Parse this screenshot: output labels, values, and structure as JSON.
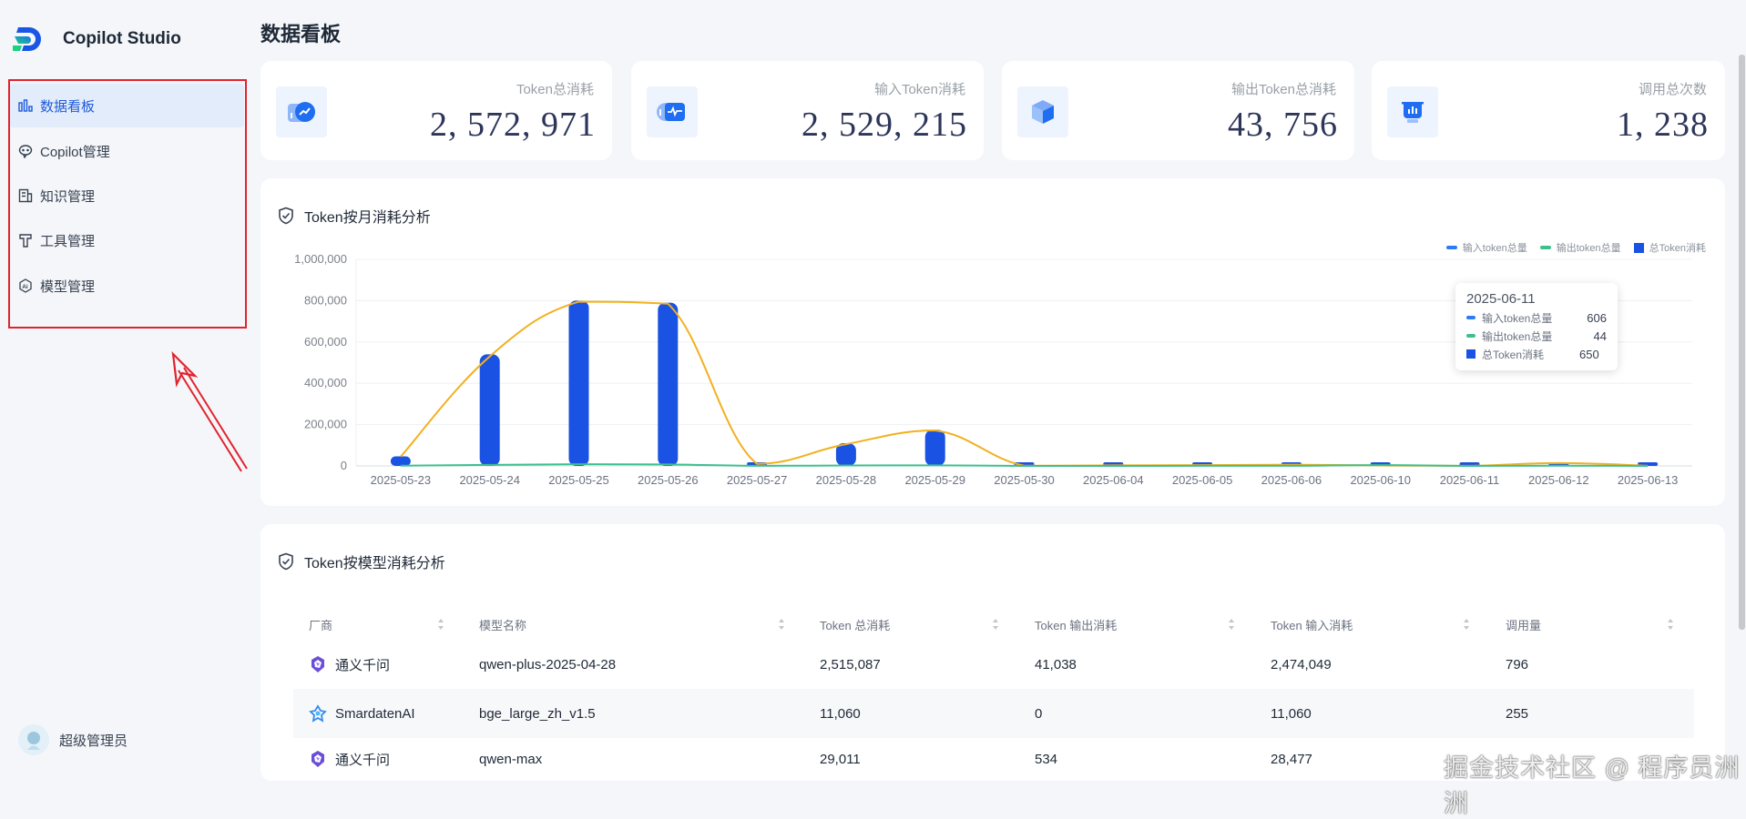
{
  "app": {
    "brand": "Copilot Studio"
  },
  "sidebar": {
    "items": [
      {
        "label": "数据看板",
        "icon": "bar-chart-icon",
        "active": true
      },
      {
        "label": "Copilot管理",
        "icon": "chat-bubble-icon",
        "active": false
      },
      {
        "label": "知识管理",
        "icon": "document-icon",
        "active": false
      },
      {
        "label": "工具管理",
        "icon": "hammer-icon",
        "active": false
      },
      {
        "label": "模型管理",
        "icon": "ai-hexagon-icon",
        "active": false
      }
    ],
    "user": {
      "name": "超级管理员"
    }
  },
  "page": {
    "title": "数据看板"
  },
  "stats": [
    {
      "label": "Token总消耗",
      "value": "2, 572, 971",
      "icon": "trend-coin-icon"
    },
    {
      "label": "输入Token消耗",
      "value": "2, 529, 215",
      "icon": "pulse-coin-icon"
    },
    {
      "label": "输出Token总消耗",
      "value": "43, 756",
      "icon": "cube-icon"
    },
    {
      "label": "调用总次数",
      "value": "1, 238",
      "icon": "bucket-chart-icon"
    }
  ],
  "chart_section": {
    "title": "Token按月消耗分析"
  },
  "chart_data": {
    "type": "bar",
    "title": "Token按月消耗分析",
    "xlabel": "",
    "ylabel": "",
    "ylim": [
      0,
      1000000
    ],
    "yticks": [
      "0",
      "200,000",
      "400,000",
      "600,000",
      "800,000",
      "1,000,000"
    ],
    "ytick_values": [
      0,
      200000,
      400000,
      600000,
      800000,
      1000000
    ],
    "grid": true,
    "legend_position": "top-right",
    "categories": [
      "2025-05-23",
      "2025-05-24",
      "2025-05-25",
      "2025-05-26",
      "2025-05-27",
      "2025-05-28",
      "2025-05-29",
      "2025-05-30",
      "2025-06-04",
      "2025-06-05",
      "2025-06-06",
      "2025-06-10",
      "2025-06-11",
      "2025-06-12",
      "2025-06-13"
    ],
    "series": [
      {
        "name": "输入token总量",
        "type": "line",
        "color": "#f2b01e",
        "values": [
          45000,
          530000,
          795000,
          785000,
          10000,
          105000,
          172000,
          1000,
          3000,
          4000,
          6000,
          2000,
          606,
          14000,
          1000
        ]
      },
      {
        "name": "输出token总量",
        "type": "line",
        "color": "#3cc08e",
        "values": [
          1000,
          5000,
          8000,
          7000,
          300,
          2000,
          3000,
          50,
          200,
          300,
          500,
          4000,
          44,
          1000,
          100
        ]
      },
      {
        "name": "总Token消耗",
        "type": "bar",
        "color": "#1a52e3",
        "values": [
          46000,
          540000,
          800000,
          790000,
          11000,
          110000,
          175000,
          1000,
          3000,
          4000,
          6500,
          6000,
          650,
          15000,
          1100
        ]
      }
    ],
    "legend": [
      {
        "name": "输入token总量",
        "marker": "line",
        "color": "#2f7bf5"
      },
      {
        "name": "输出token总量",
        "marker": "line",
        "color": "#3cc08e"
      },
      {
        "name": "总Token消耗",
        "marker": "square",
        "color": "#1a52e3"
      }
    ],
    "tooltip": {
      "date": "2025-06-11",
      "rows": [
        {
          "name": "输入token总量",
          "value": "606",
          "color": "#2f7bf5",
          "marker": "line"
        },
        {
          "name": "输出token总量",
          "value": "44",
          "color": "#3cc08e",
          "marker": "line"
        },
        {
          "name": "总Token消耗",
          "value": "650",
          "color": "#1a52e3",
          "marker": "square"
        }
      ]
    }
  },
  "table_section": {
    "title": "Token按模型消耗分析",
    "columns": [
      "厂商",
      "模型名称",
      "Token 总消耗",
      "Token 输出消耗",
      "Token 输入消耗",
      "调用量"
    ],
    "rows": [
      {
        "vendor": "通义千问",
        "vendor_icon": "tongyi-logo-icon",
        "model": "qwen-plus-2025-04-28",
        "total": "2,515,087",
        "output": "41,038",
        "input": "2,474,049",
        "calls": "796"
      },
      {
        "vendor": "SmardatenAI",
        "vendor_icon": "smardaten-logo-icon",
        "model": "bge_large_zh_v1.5",
        "total": "11,060",
        "output": "0",
        "input": "11,060",
        "calls": "255"
      },
      {
        "vendor": "通义千问",
        "vendor_icon": "tongyi-logo-icon",
        "model": "qwen-max",
        "total": "29,011",
        "output": "534",
        "input": "28,477",
        "calls": ""
      }
    ]
  },
  "watermark": "掘金技术社区 @ 程序员洲洲"
}
